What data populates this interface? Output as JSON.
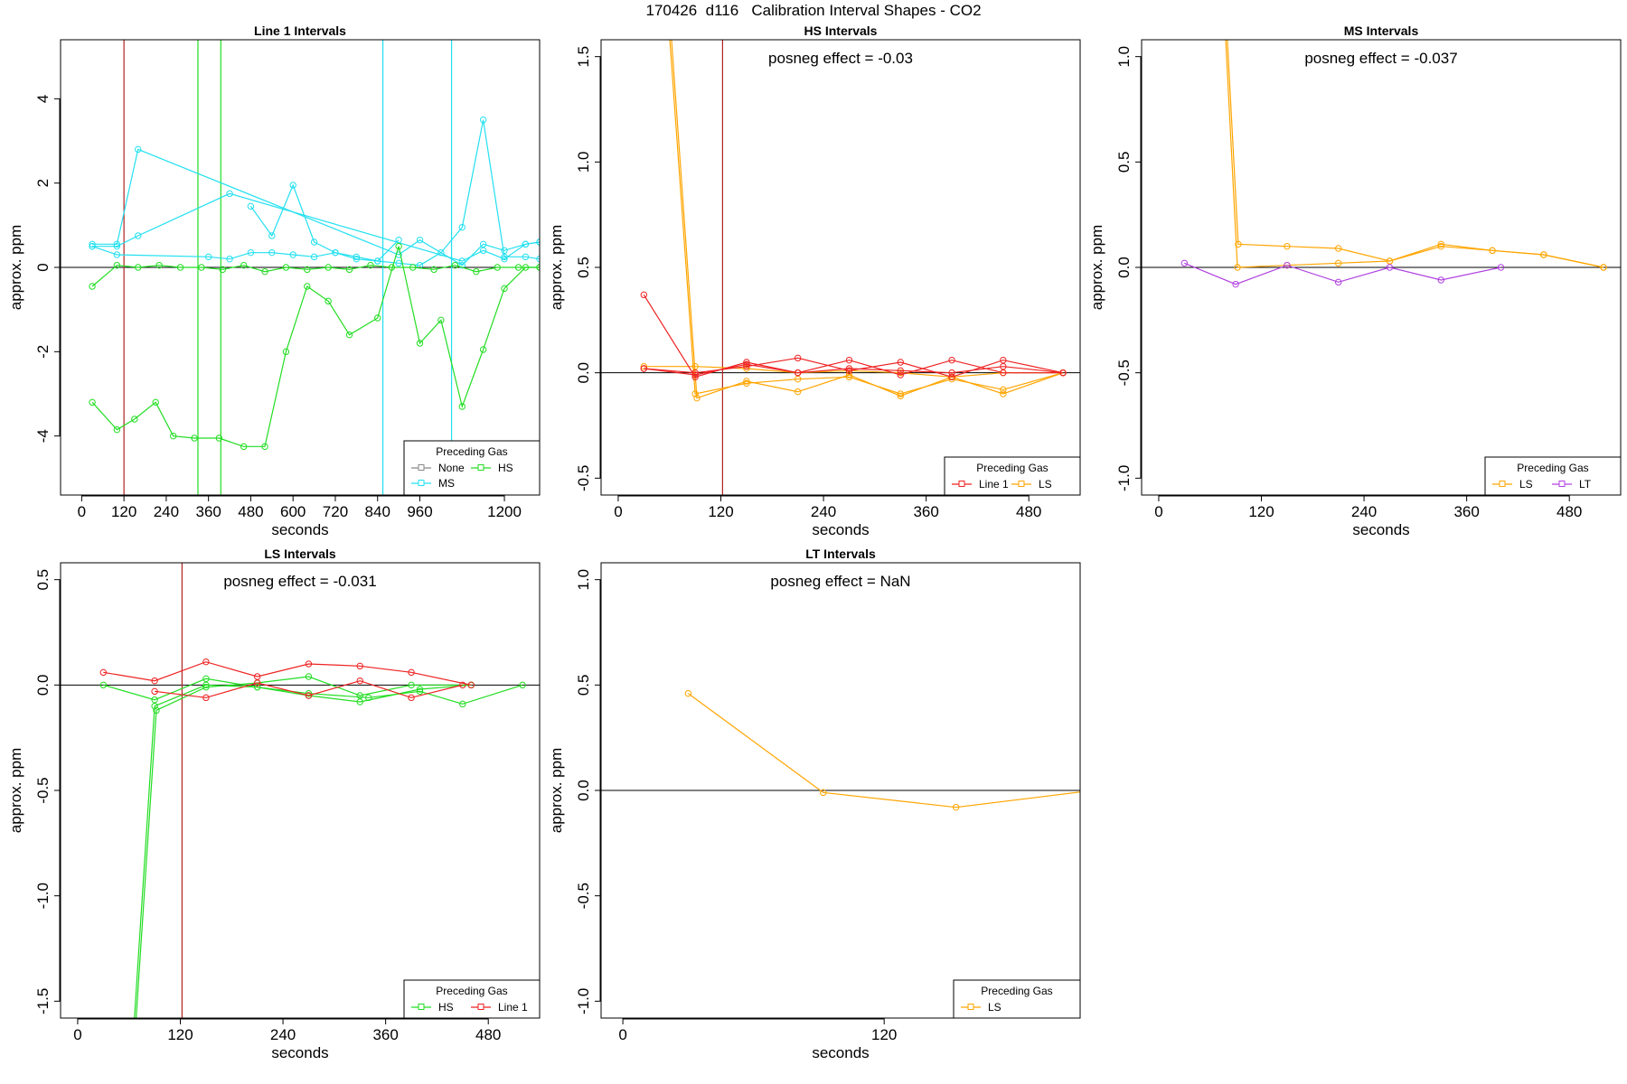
{
  "figure_title": "170426  d116   Calibration Interval Shapes - CO2",
  "chart_data": [
    {
      "id": "line1",
      "type": "line",
      "title": "Line 1 Intervals",
      "xlabel": "seconds",
      "ylabel": "approx. ppm",
      "xlim": [
        -60,
        1300
      ],
      "ylim": [
        -5.4,
        5.4
      ],
      "xticks": [
        0,
        120,
        240,
        360,
        480,
        600,
        720,
        840,
        960,
        1200
      ],
      "yticks": [
        -4,
        -2,
        0,
        2,
        4
      ],
      "vlines": [
        {
          "x": 120,
          "color": "#b22222"
        },
        {
          "x": 330,
          "color": "#22dd22"
        },
        {
          "x": 395,
          "color": "#22dd22"
        },
        {
          "x": 855,
          "color": "#22e0f0"
        },
        {
          "x": 1050,
          "color": "#22e0f0"
        }
      ],
      "posneg": "",
      "legend": {
        "title": "Preceding Gas",
        "entries": [
          {
            "label": "None",
            "color": "#888888"
          },
          {
            "label": "HS",
            "color": "#22dd22"
          },
          {
            "label": "MS",
            "color": "#22e0f0"
          }
        ]
      },
      "series": [
        {
          "name": "MS",
          "color": "#22e0f0",
          "x": [
            30,
            100,
            160,
            420,
            1080,
            1140,
            1200,
            1260,
            1300
          ],
          "y": [
            0.5,
            0.5,
            0.75,
            1.75,
            0.15,
            0.4,
            0.2,
            0.55,
            0.6
          ]
        },
        {
          "name": "MS",
          "color": "#22e0f0",
          "x": [
            30,
            100,
            160,
            900,
            960,
            1080,
            1140,
            1200,
            1260,
            1300
          ],
          "y": [
            0.55,
            0.55,
            2.8,
            0.3,
            0.65,
            0.05,
            0.55,
            0.4,
            0.55,
            0.6
          ]
        },
        {
          "name": "MS",
          "color": "#22e0f0",
          "x": [
            30,
            100,
            360,
            420,
            480,
            540,
            600,
            660,
            720,
            780,
            840,
            900,
            960,
            1020,
            1080,
            1140,
            1200,
            1260,
            1300
          ],
          "y": [
            0.5,
            0.3,
            0.25,
            0.2,
            0.35,
            0.35,
            0.3,
            0.25,
            0.35,
            0.2,
            0.15,
            0.1,
            0.05,
            0.35,
            0.95,
            3.5,
            0.25,
            0.25,
            0.2
          ]
        },
        {
          "name": "MS",
          "color": "#22e0f0",
          "x": [
            480,
            540,
            600,
            660,
            720,
            780,
            840,
            900
          ],
          "y": [
            1.45,
            0.75,
            1.95,
            0.6,
            0.35,
            0.25,
            0.15,
            0.65
          ]
        },
        {
          "name": "HS",
          "color": "#22dd22",
          "x": [
            30,
            100,
            160,
            220,
            280,
            340,
            400,
            460,
            520,
            580,
            640,
            700,
            760,
            820,
            880,
            940,
            1000,
            1060,
            1120,
            1180,
            1240,
            1300
          ],
          "y": [
            -0.45,
            0.05,
            0.0,
            0.05,
            0.0,
            0.0,
            -0.05,
            0.05,
            -0.1,
            0.0,
            -0.05,
            0.0,
            -0.05,
            0.05,
            0.0,
            0.0,
            -0.05,
            0.05,
            -0.1,
            0.0,
            0.0,
            0.0
          ]
        },
        {
          "name": "HS",
          "color": "#22dd22",
          "x": [
            30,
            100,
            150,
            210,
            260,
            320,
            390,
            460,
            520,
            580,
            640,
            700,
            760,
            840,
            900,
            960,
            1020,
            1080,
            1140,
            1200,
            1260,
            1300
          ],
          "y": [
            -3.2,
            -3.85,
            -3.6,
            -3.2,
            -4.0,
            -4.05,
            -4.05,
            -4.25,
            -4.25,
            -2.0,
            -0.45,
            -0.8,
            -1.6,
            -1.2,
            0.5,
            -1.8,
            -1.25,
            -3.3,
            -1.95,
            -0.5,
            0.0,
            0.0
          ]
        }
      ]
    },
    {
      "id": "hs",
      "type": "line",
      "title": "HS Intervals",
      "xlabel": "seconds",
      "ylabel": "approx. ppm",
      "xlim": [
        -20,
        540
      ],
      "ylim": [
        -0.58,
        1.58
      ],
      "xticks": [
        0,
        120,
        240,
        360,
        480
      ],
      "yticks": [
        -0.5,
        0.0,
        0.5,
        1.0,
        1.5
      ],
      "vlines": [
        {
          "x": 122,
          "color": "#b22222"
        }
      ],
      "posneg": "posneg effect = -0.03",
      "legend": {
        "title": "Preceding Gas",
        "entries": [
          {
            "label": "Line 1",
            "color": "#ee2222"
          },
          {
            "label": "LS",
            "color": "#ffa500"
          }
        ]
      },
      "series": [
        {
          "name": "LS",
          "color": "#ffa500",
          "x": [
            60,
            90,
            150,
            210,
            270,
            330,
            390,
            450,
            520
          ],
          "y": [
            1.6,
            -0.1,
            -0.05,
            -0.03,
            -0.02,
            -0.1,
            -0.03,
            -0.08,
            0.0
          ]
        },
        {
          "name": "LS",
          "color": "#ffa500",
          "x": [
            62,
            92,
            150,
            210,
            270,
            330,
            390,
            450,
            520
          ],
          "y": [
            1.6,
            -0.12,
            -0.04,
            -0.09,
            -0.01,
            -0.11,
            -0.02,
            -0.1,
            0.0
          ]
        },
        {
          "name": "LS",
          "color": "#ffa500",
          "x": [
            30,
            90,
            150,
            210,
            270,
            330,
            390,
            450,
            520
          ],
          "y": [
            0.03,
            0.03,
            0.02,
            0.0,
            0.01,
            0.0,
            -0.02,
            0.0,
            0.0
          ]
        },
        {
          "name": "Line 1",
          "color": "#ee2222",
          "x": [
            30,
            90,
            150,
            210,
            270,
            330,
            390,
            450,
            520
          ],
          "y": [
            0.37,
            -0.02,
            0.05,
            0.0,
            0.06,
            -0.01,
            0.06,
            0.0,
            0.0
          ]
        },
        {
          "name": "Line 1",
          "color": "#ee2222",
          "x": [
            30,
            90,
            150,
            210,
            270,
            330,
            390,
            450,
            520
          ],
          "y": [
            0.02,
            0.0,
            0.03,
            0.07,
            0.01,
            0.05,
            -0.02,
            0.06,
            0.0
          ]
        },
        {
          "name": "Line 1",
          "color": "#ee2222",
          "x": [
            30,
            90,
            150,
            210,
            270,
            330,
            390,
            450,
            520
          ],
          "y": [
            0.02,
            -0.01,
            0.04,
            0.0,
            0.02,
            0.01,
            0.0,
            0.03,
            0.0
          ]
        }
      ]
    },
    {
      "id": "ms",
      "type": "line",
      "title": "MS Intervals",
      "xlabel": "seconds",
      "ylabel": "approx. ppm",
      "xlim": [
        -20,
        540
      ],
      "ylim": [
        -1.08,
        1.08
      ],
      "xticks": [
        0,
        120,
        240,
        360,
        480
      ],
      "yticks": [
        -1.0,
        -0.5,
        0.0,
        0.5,
        1.0
      ],
      "vlines": [],
      "posneg": "posneg effect = -0.037",
      "legend": {
        "title": "Preceding Gas",
        "entries": [
          {
            "label": "LS",
            "color": "#ffa500"
          },
          {
            "label": "LT",
            "color": "#b040e0"
          }
        ]
      },
      "series": [
        {
          "name": "LS",
          "color": "#ffa500",
          "x": [
            78,
            92,
            150,
            210,
            270,
            330,
            390,
            450,
            520
          ],
          "y": [
            1.1,
            0.0,
            0.01,
            0.02,
            0.03,
            0.1,
            0.08,
            0.06,
            0.0
          ]
        },
        {
          "name": "LS",
          "color": "#ffa500",
          "x": [
            80,
            93,
            150,
            210,
            270,
            330,
            390,
            450,
            520
          ],
          "y": [
            1.1,
            0.11,
            0.1,
            0.09,
            0.03,
            0.11,
            0.08,
            0.06,
            0.0
          ]
        },
        {
          "name": "LT",
          "color": "#b040e0",
          "x": [
            30,
            90,
            150,
            210,
            270,
            330,
            400
          ],
          "y": [
            0.02,
            -0.08,
            0.01,
            -0.07,
            0.0,
            -0.06,
            0.0
          ]
        }
      ]
    },
    {
      "id": "ls",
      "type": "line",
      "title": "LS Intervals",
      "xlabel": "seconds",
      "ylabel": "approx. ppm",
      "xlim": [
        -20,
        540
      ],
      "ylim": [
        -1.58,
        0.58
      ],
      "xticks": [
        0,
        120,
        240,
        360,
        480
      ],
      "yticks": [
        -1.5,
        -1.0,
        -0.5,
        0.0,
        0.5
      ],
      "vlines": [
        {
          "x": 122,
          "color": "#b22222"
        }
      ],
      "posneg": "posneg effect = -0.031",
      "legend": {
        "title": "Preceding Gas",
        "entries": [
          {
            "label": "HS",
            "color": "#22dd22"
          },
          {
            "label": "Line 1",
            "color": "#ee2222"
          }
        ]
      },
      "series": [
        {
          "name": "HS",
          "color": "#22dd22",
          "x": [
            66,
            90,
            150,
            210,
            270,
            330,
            400,
            460
          ],
          "y": [
            -1.6,
            -0.1,
            0.0,
            -0.01,
            -0.05,
            -0.08,
            -0.02,
            0.0
          ]
        },
        {
          "name": "HS",
          "color": "#22dd22",
          "x": [
            68,
            92,
            150,
            210,
            270,
            330,
            390,
            460
          ],
          "y": [
            -1.6,
            -0.12,
            -0.01,
            0.01,
            0.04,
            -0.05,
            0.0,
            0.0
          ]
        },
        {
          "name": "HS",
          "color": "#22dd22",
          "x": [
            30,
            90,
            150,
            210,
            270,
            340,
            400,
            450,
            520
          ],
          "y": [
            0.0,
            -0.07,
            0.03,
            -0.01,
            -0.04,
            -0.06,
            -0.03,
            -0.09,
            0.0
          ]
        },
        {
          "name": "Line 1",
          "color": "#ee2222",
          "x": [
            30,
            90,
            150,
            210,
            270,
            330,
            390,
            460
          ],
          "y": [
            0.06,
            0.02,
            0.11,
            0.04,
            0.1,
            0.09,
            0.06,
            0.0
          ]
        },
        {
          "name": "Line 1",
          "color": "#ee2222",
          "x": [
            90,
            150,
            210,
            270,
            330,
            390,
            450
          ],
          "y": [
            -0.03,
            -0.06,
            0.01,
            -0.05,
            0.02,
            -0.06,
            0.0
          ]
        }
      ]
    },
    {
      "id": "lt",
      "type": "line",
      "title": "LT Intervals",
      "xlabel": "seconds",
      "ylabel": "approx. ppm",
      "xlim": [
        -10,
        210
      ],
      "ylim": [
        -1.08,
        1.08
      ],
      "xticks": [
        0,
        120
      ],
      "yticks": [
        -1.0,
        -0.5,
        0.0,
        0.5,
        1.0
      ],
      "vlines": [],
      "posneg": "posneg effect = NaN",
      "legend": {
        "title": "Preceding Gas",
        "entries": [
          {
            "label": "LS",
            "color": "#ffa500"
          }
        ]
      },
      "series": [
        {
          "name": "LS",
          "color": "#ffa500",
          "x": [
            30,
            92,
            153,
            216
          ],
          "y": [
            0.46,
            -0.01,
            -0.08,
            0.0
          ]
        }
      ]
    }
  ]
}
